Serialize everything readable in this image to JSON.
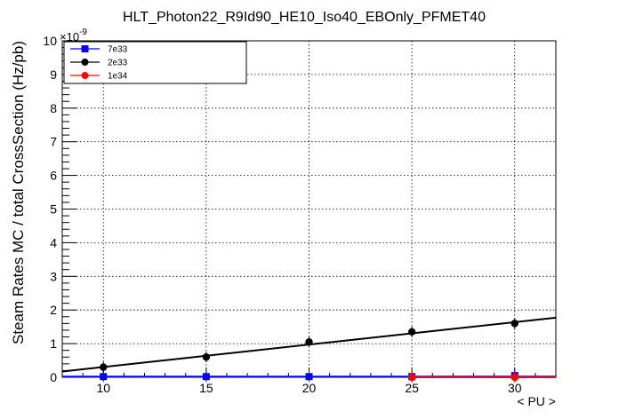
{
  "chart_data": {
    "type": "scatter",
    "title": "HLT_Photon22_R9Id90_HE10_Iso40_EBOnly_PFMET40",
    "xlabel": "< PU >",
    "ylabel": "Steam Rates MC / total CrossSection (Hz/pb)",
    "yexponent_label": "×10",
    "yexponent_power": "-9",
    "xlim": [
      8,
      32
    ],
    "ylim": [
      0,
      10
    ],
    "grid": true,
    "legend_position": "top-left",
    "xticks": [
      10,
      15,
      20,
      25,
      30
    ],
    "xtick_labels": [
      "10",
      "15",
      "20",
      "25",
      "30"
    ],
    "yticks": [
      0,
      1,
      2,
      3,
      4,
      5,
      6,
      7,
      8,
      9,
      10
    ],
    "ytick_labels": [
      "0",
      "1",
      "2",
      "3",
      "4",
      "5",
      "6",
      "7",
      "8",
      "9",
      "10"
    ],
    "series": [
      {
        "name": "7e33",
        "color": "#0000ff",
        "marker": "square",
        "x": [
          10,
          15,
          20,
          25,
          30
        ],
        "y": [
          0.02,
          0.02,
          0.02,
          0.02,
          0.05
        ],
        "fit": {
          "slope": 0.0,
          "intercept": 0.02
        }
      },
      {
        "name": "2e33",
        "color": "#000000",
        "marker": "circle",
        "x": [
          10,
          15,
          20,
          25,
          30
        ],
        "y": [
          0.3,
          0.6,
          1.05,
          1.35,
          1.6
        ],
        "fit": {
          "slope": 0.0666,
          "intercept": -0.36
        }
      },
      {
        "name": "1e34",
        "color": "#ff0000",
        "marker": "circle",
        "x": [
          25,
          30
        ],
        "y": [
          0.0,
          0.0
        ],
        "fit": {
          "slope": 0.0,
          "intercept": 0.0,
          "x_from": 25
        }
      }
    ]
  }
}
